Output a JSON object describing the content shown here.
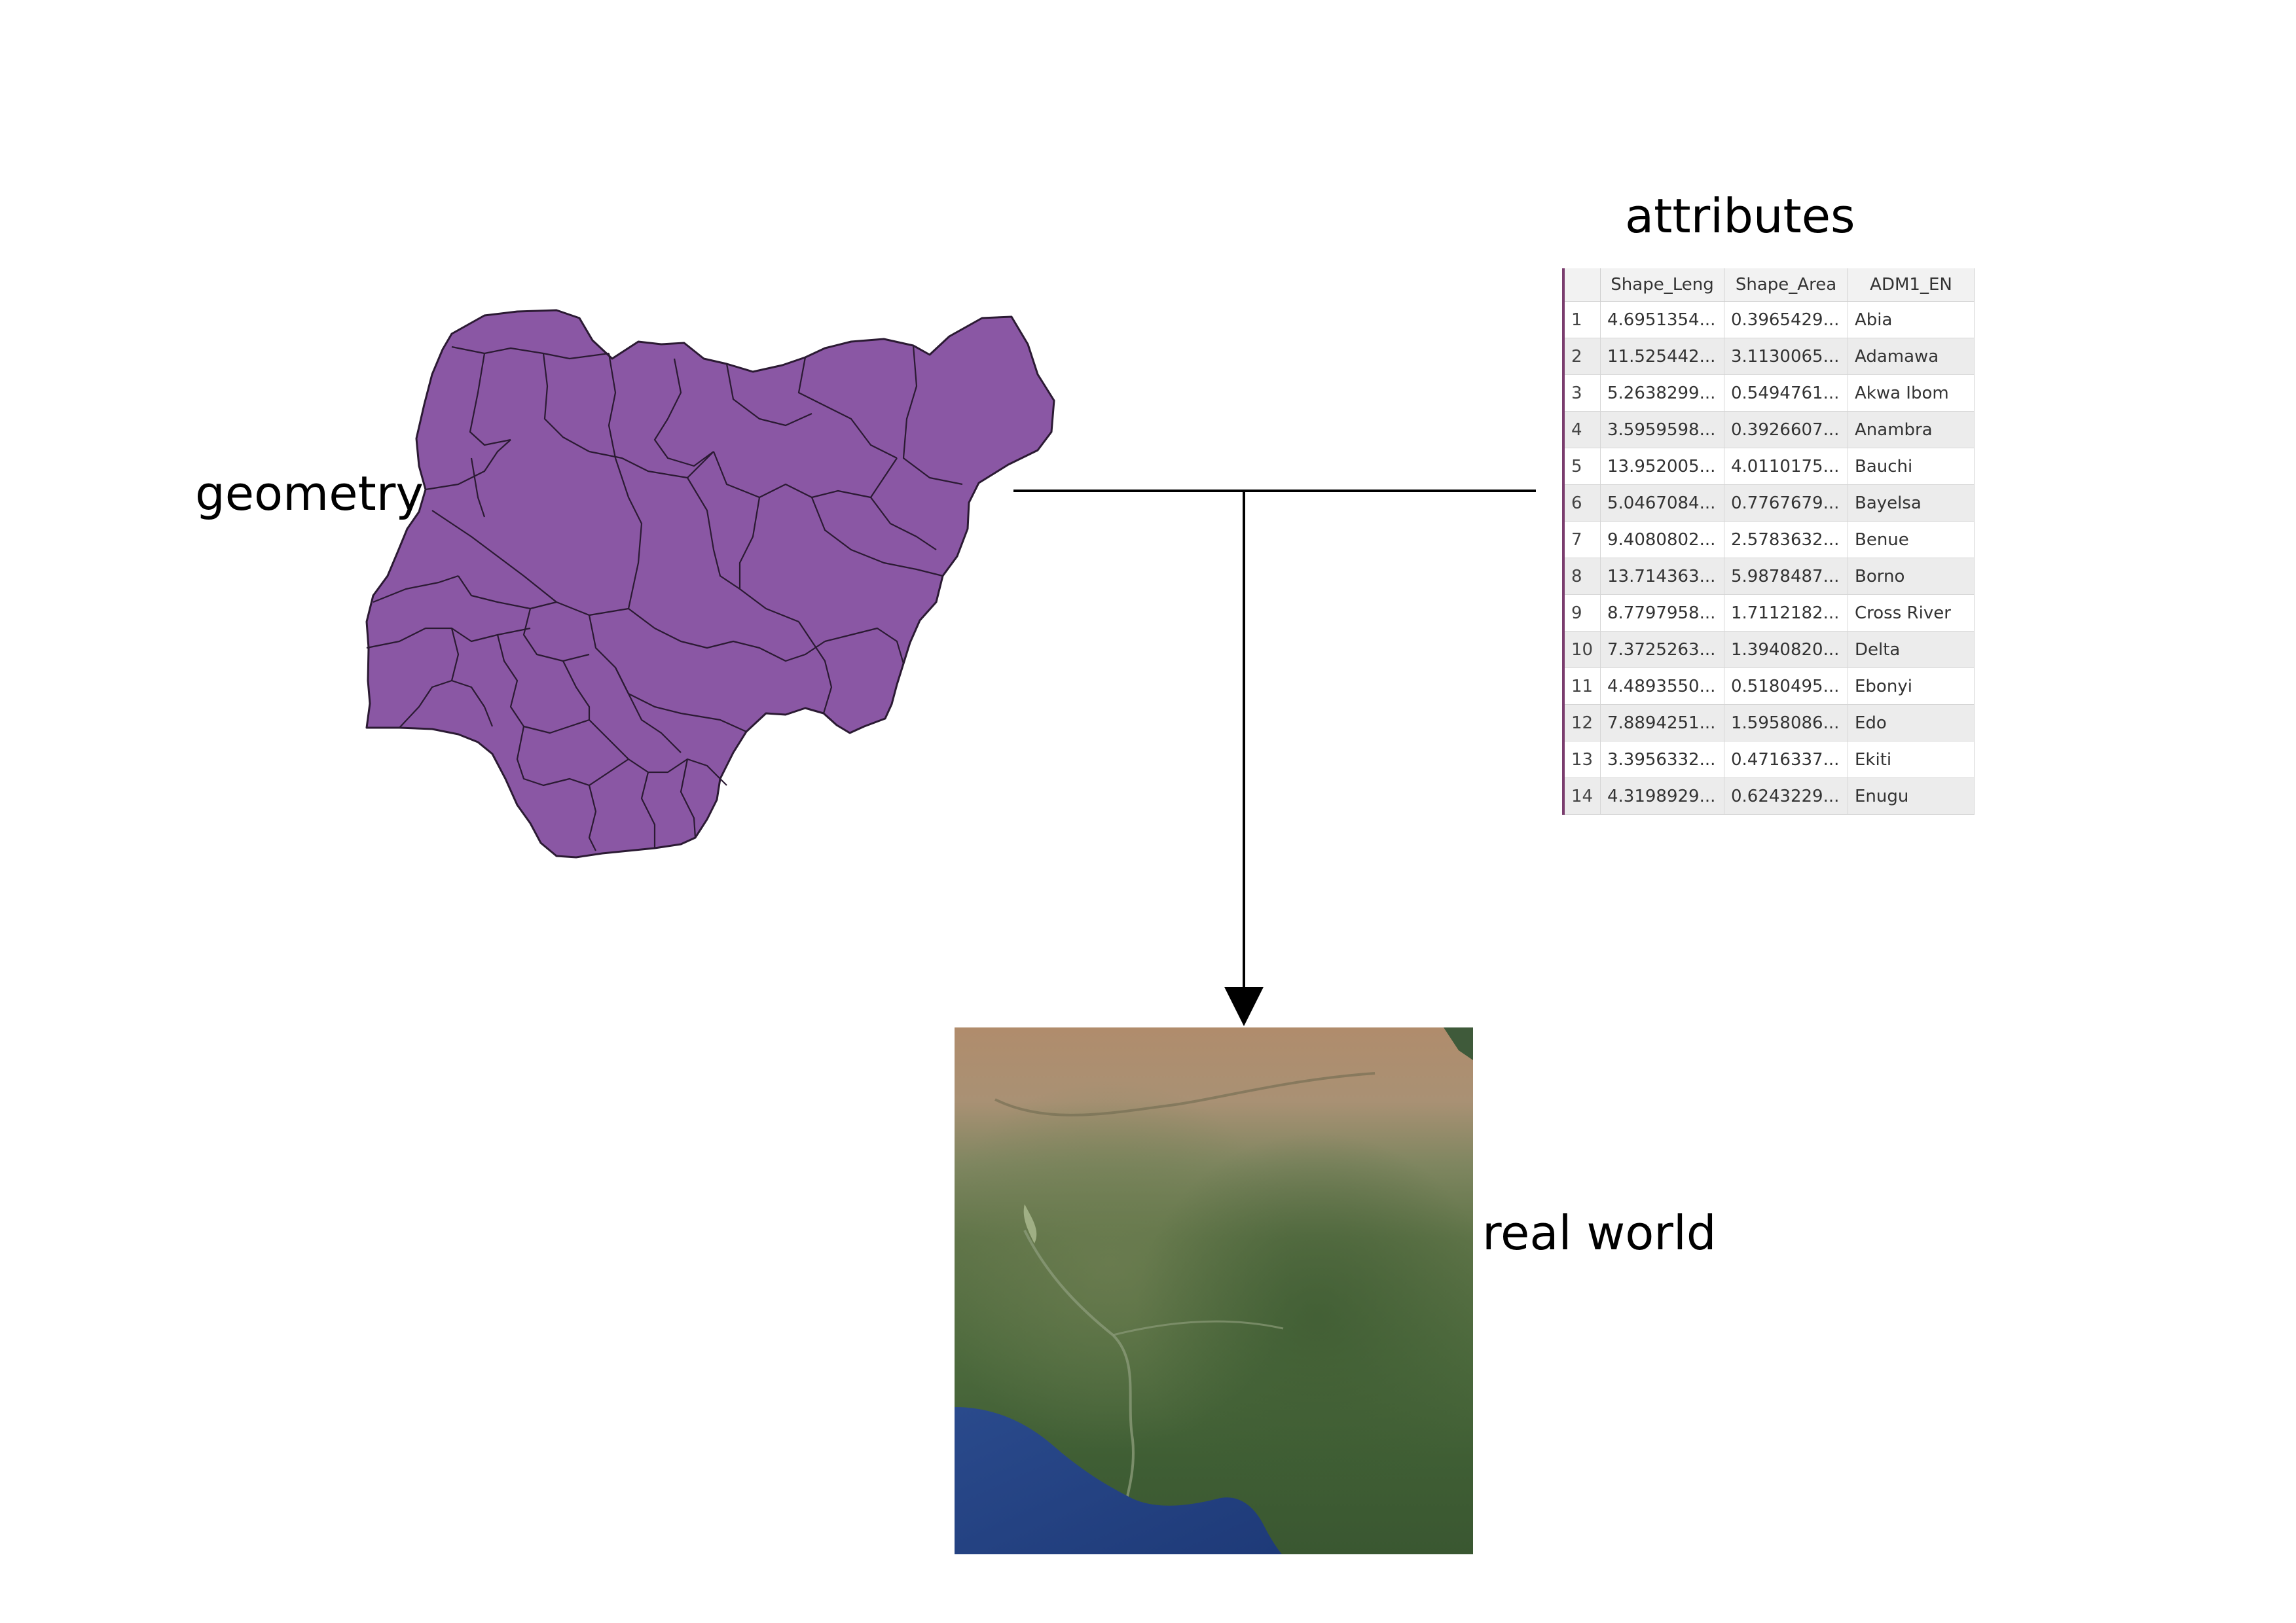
{
  "labels": {
    "geometry": "geometry",
    "attributes": "attributes",
    "real_world": "real world"
  },
  "colors": {
    "map_fill": "#8a57a4",
    "map_border": "#2b1a33",
    "connector": "#000000"
  },
  "table": {
    "columns": [
      "",
      "Shape_Leng",
      "Shape_Area",
      "ADM1_EN"
    ],
    "rows": [
      {
        "id": "1",
        "shape_leng": "4.6951354...",
        "shape_area": "0.3965429...",
        "adm1_en": "Abia"
      },
      {
        "id": "2",
        "shape_leng": "11.525442...",
        "shape_area": "3.1130065...",
        "adm1_en": "Adamawa"
      },
      {
        "id": "3",
        "shape_leng": "5.2638299...",
        "shape_area": "0.5494761...",
        "adm1_en": "Akwa Ibom"
      },
      {
        "id": "4",
        "shape_leng": "3.5959598...",
        "shape_area": "0.3926607...",
        "adm1_en": "Anambra"
      },
      {
        "id": "5",
        "shape_leng": "13.952005...",
        "shape_area": "4.0110175...",
        "adm1_en": "Bauchi"
      },
      {
        "id": "6",
        "shape_leng": "5.0467084...",
        "shape_area": "0.7767679...",
        "adm1_en": "Bayelsa"
      },
      {
        "id": "7",
        "shape_leng": "9.4080802...",
        "shape_area": "2.5783632...",
        "adm1_en": "Benue"
      },
      {
        "id": "8",
        "shape_leng": "13.714363...",
        "shape_area": "5.9878487...",
        "adm1_en": "Borno"
      },
      {
        "id": "9",
        "shape_leng": "8.7797958...",
        "shape_area": "1.7112182...",
        "adm1_en": "Cross River"
      },
      {
        "id": "10",
        "shape_leng": "7.3725263...",
        "shape_area": "1.3940820...",
        "adm1_en": "Delta"
      },
      {
        "id": "11",
        "shape_leng": "4.4893550...",
        "shape_area": "0.5180495...",
        "adm1_en": "Ebonyi"
      },
      {
        "id": "12",
        "shape_leng": "7.8894251...",
        "shape_area": "1.5958086...",
        "adm1_en": "Edo"
      },
      {
        "id": "13",
        "shape_leng": "3.3956332...",
        "shape_area": "0.4716337...",
        "adm1_en": "Ekiti"
      },
      {
        "id": "14",
        "shape_leng": "4.3198929...",
        "shape_area": "0.6243229...",
        "adm1_en": "Enugu"
      }
    ]
  }
}
